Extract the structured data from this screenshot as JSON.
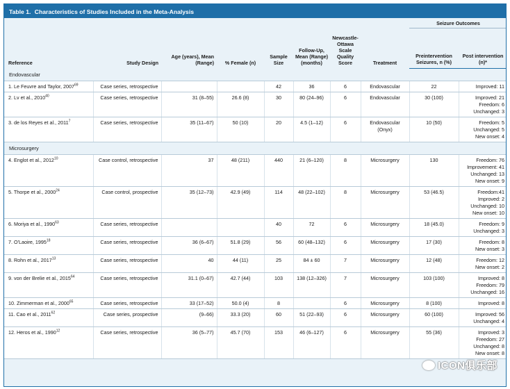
{
  "title": {
    "label": "Table 1.",
    "text": "Characteristics of Studies Included in the Meta-Analysis"
  },
  "headers": {
    "reference": "Reference",
    "design": "Study Design",
    "age": "Age (years), Mean (Range)",
    "female": "% Female (n)",
    "sample": "Sample Size",
    "followup": "Follow-Up, Mean (Range) (months)",
    "nos": "Newcastle-Ottawa Scale Quality Score",
    "treatment": "Treatment",
    "seizure_group": "Seizure Outcomes",
    "pre": "Preintervention Seizures, n (%)",
    "post": "Post intervention (n)*"
  },
  "sections": [
    {
      "label": "Endovascular",
      "rows": [
        {
          "ref": "1. Le Feuvre and Taylor, 2007",
          "sup": "69",
          "design": "Case series, retrospective",
          "age": "",
          "female": "",
          "sample": "42",
          "followup": "36",
          "nos": "6",
          "treatment": "Endovascular",
          "pre": "22",
          "post": [
            "Improved: 11"
          ]
        },
        {
          "ref": "2. Lv et al., 2010",
          "sup": "40",
          "design": "Case series, retrospective",
          "age": "31 (8–55)",
          "female": "26.6 (8)",
          "sample": "30",
          "followup": "80 (24–96)",
          "nos": "6",
          "treatment": "Endovascular",
          "pre": "30 (100)",
          "post": [
            "Improved: 21",
            "Freedom: 6",
            "Unchanged: 3"
          ]
        },
        {
          "ref": "3. de los Reyes et al., 2011",
          "sup": "7",
          "design": "Case series, retrospective",
          "age": "35 (11–67)",
          "female": "50 (10)",
          "sample": "20",
          "followup": "4.5 (1–12)",
          "nos": "6",
          "treatment": "Endovascular (Onyx)",
          "pre": "10 (50)",
          "post": [
            "Freedom: 5",
            "Unchanged: 5",
            "New onset: 4"
          ]
        }
      ]
    },
    {
      "label": "Microsurgery",
      "rows": [
        {
          "ref": "4. Englot et al., 2012",
          "sup": "10",
          "design": "Case control, retrospective",
          "age": "37",
          "female": "48 (211)",
          "sample": "440",
          "followup": "21 (6–120)",
          "nos": "8",
          "treatment": "Microsurgery",
          "pre": "130",
          "post": [
            "Freedom: 76",
            "Improvement: 41",
            "Unchanged: 13",
            "New onset: 9"
          ]
        },
        {
          "ref": "5. Thorpe et al., 2000",
          "sup": "24",
          "design": "Case control, prospective",
          "age": "35 (12–73)",
          "female": "42.9 (49)",
          "sample": "114",
          "followup": "48 (22–102)",
          "nos": "8",
          "treatment": "Microsurgery",
          "pre": "53 (46.5)",
          "post": [
            "Freedom:41",
            "Improved: 2",
            "Unchanged: 10",
            "New onset: 10"
          ]
        },
        {
          "ref": "6. Moriya et al., 1990",
          "sup": "63",
          "design": "Case series, retrospective",
          "age": "",
          "female": "",
          "sample": "40",
          "followup": "72",
          "nos": "6",
          "treatment": "Microsurgery",
          "pre": "18 (45.0)",
          "post": [
            "Freedom: 9",
            "Unchanged: 3"
          ]
        },
        {
          "ref": "7. O'Laoire, 1995",
          "sup": "18",
          "design": "Case series, retrospective",
          "age": "36 (6–67)",
          "female": "51.8 (29)",
          "sample": "56",
          "followup": "60 (48–132)",
          "nos": "6",
          "treatment": "Microsurgery",
          "pre": "17 (30)",
          "post": [
            "Freedom: 8",
            "New onset: 3"
          ]
        },
        {
          "ref": "8. Rohn et al., 2017",
          "sup": "13",
          "design": "Case series, retrospective",
          "age": "40",
          "female": "44 (11)",
          "sample": "25",
          "followup": "84 ± 60",
          "nos": "7",
          "treatment": "Microsurgery",
          "pre": "12 (48)",
          "post": [
            "Freedom: 12",
            "New onset: 2"
          ]
        },
        {
          "ref": "9. von der Brelie et al., 2015",
          "sup": "64",
          "design": "Case series, retrospective",
          "age": "31.1 (0–67)",
          "female": "42.7 (44)",
          "sample": "103",
          "followup": "138 (12–326)",
          "nos": "7",
          "treatment": "Microsurgery",
          "pre": "103 (100)",
          "post": [
            "Improved: 8",
            "Freedom: 79",
            "Unchanged: 16"
          ]
        },
        {
          "ref": "10. Zimmerman et al., 2000",
          "sup": "65",
          "design": "Case series, retrospective",
          "age": "33 (17–52)",
          "female": "50.0 (4)",
          "sample": "8",
          "followup": "",
          "nos": "6",
          "treatment": "Microsurgery",
          "pre": "8 (100)",
          "post": [
            "Improved: 8"
          ]
        },
        {
          "ref": "11. Cao et al., 2011",
          "sup": "62",
          "design": "Case series, prospective",
          "age": "(9–66)",
          "female": "33.3 (20)",
          "sample": "60",
          "followup": "51 (22–93)",
          "nos": "6",
          "treatment": "Microsurgery",
          "pre": "60 (100)",
          "post": [
            "Improved: 56",
            "Unchanged: 4"
          ]
        },
        {
          "ref": "12. Heros et al., 1990",
          "sup": "12",
          "design": "Case series, retrospective",
          "age": "36 (5–77)",
          "female": "45.7 (70)",
          "sample": "153",
          "followup": "46 (6–127)",
          "nos": "6",
          "treatment": "Microsurgery",
          "pre": "55 (36)",
          "post": [
            "Improved: 3",
            "Freedom: 27",
            "Unchanged: 8",
            "New onset: 8"
          ]
        }
      ]
    }
  ],
  "watermark": "ICON俱乐部"
}
